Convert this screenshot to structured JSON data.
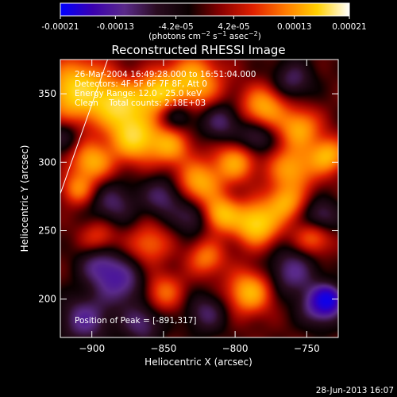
{
  "chart_data": {
    "type": "heatmap",
    "title": "Reconstructed RHESSI Image",
    "xlabel": "Heliocentric X (arcsec)",
    "ylabel": "Heliocentric Y (arcsec)",
    "xlim": [
      -922,
      -728
    ],
    "ylim": [
      172,
      375
    ],
    "x_ticks": [
      {
        "value": -900,
        "label": "−900"
      },
      {
        "value": -850,
        "label": "−850"
      },
      {
        "value": -800,
        "label": "−800"
      },
      {
        "value": -750,
        "label": "−750"
      }
    ],
    "y_ticks": [
      {
        "value": 200,
        "label": "200"
      },
      {
        "value": 250,
        "label": "250"
      },
      {
        "value": 300,
        "label": "300"
      },
      {
        "value": 350,
        "label": "350"
      }
    ],
    "info_lines": [
      "26-Mar-2004 16:49:28.000 to 16:51:04.000",
      "Detectors: 4F 5F 6F 7F 8F, Att 0",
      "Energy Range: 12.0 - 25.0 keV",
      "Clean    Total counts: 2.18E+03"
    ],
    "peak_label": "Position of Peak = [-891,317]",
    "peak": [
      -891,
      317
    ],
    "colorbar": {
      "range": [
        -0.00021,
        0.00021
      ],
      "ticks": [
        {
          "value": -0.00021,
          "label": "-0.00021"
        },
        {
          "value": -0.00013,
          "label": "-0.00013"
        },
        {
          "value": -4.2e-05,
          "label": "-4.2e-05"
        },
        {
          "value": 4.2e-05,
          "label": "4.2e-05"
        },
        {
          "value": 0.00013,
          "label": "0.00013"
        },
        {
          "value": 0.00021,
          "label": "0.00021"
        }
      ],
      "colors": [
        "#0000ff",
        "#3a00b0",
        "#5a2a8a",
        "#2a0c20",
        "#0a0000",
        "#8a0000",
        "#e02000",
        "#ff7a00",
        "#ffd000",
        "#ffffff"
      ]
    },
    "limb_line": [
      [
        -889,
        375
      ],
      [
        -922,
        277
      ]
    ],
    "blobs": [
      {
        "x": -910,
        "y": 352,
        "a": 1.0,
        "s": 16
      },
      {
        "x": -880,
        "y": 342,
        "a": 0.85,
        "s": 12
      },
      {
        "x": -855,
        "y": 350,
        "a": 0.8,
        "s": 10
      },
      {
        "x": -830,
        "y": 358,
        "a": 0.85,
        "s": 14
      },
      {
        "x": -870,
        "y": 318,
        "a": 0.95,
        "s": 12
      },
      {
        "x": -900,
        "y": 300,
        "a": 0.75,
        "s": 10
      },
      {
        "x": -845,
        "y": 312,
        "a": 0.65,
        "s": 10
      },
      {
        "x": -780,
        "y": 340,
        "a": 0.75,
        "s": 11
      },
      {
        "x": -755,
        "y": 325,
        "a": 0.7,
        "s": 10
      },
      {
        "x": -760,
        "y": 295,
        "a": 0.7,
        "s": 12
      },
      {
        "x": -735,
        "y": 305,
        "a": 0.75,
        "s": 9
      },
      {
        "x": -800,
        "y": 300,
        "a": 0.7,
        "s": 10
      },
      {
        "x": -825,
        "y": 285,
        "a": 0.75,
        "s": 11
      },
      {
        "x": -785,
        "y": 255,
        "a": 1.0,
        "s": 11
      },
      {
        "x": -810,
        "y": 262,
        "a": 0.8,
        "s": 9
      },
      {
        "x": -765,
        "y": 270,
        "a": 0.65,
        "s": 9
      },
      {
        "x": -745,
        "y": 245,
        "a": 0.55,
        "s": 9
      },
      {
        "x": -860,
        "y": 240,
        "a": 0.5,
        "s": 10
      },
      {
        "x": -820,
        "y": 230,
        "a": 0.55,
        "s": 9
      },
      {
        "x": -895,
        "y": 245,
        "a": 0.4,
        "s": 9
      },
      {
        "x": -790,
        "y": 205,
        "a": 0.8,
        "s": 11
      },
      {
        "x": -850,
        "y": 205,
        "a": 0.5,
        "s": 10
      },
      {
        "x": -910,
        "y": 280,
        "a": 0.55,
        "s": 8
      },
      {
        "x": -880,
        "y": 212,
        "a": -0.6,
        "s": 12
      },
      {
        "x": -895,
        "y": 225,
        "a": -0.5,
        "s": 10
      },
      {
        "x": -905,
        "y": 185,
        "a": -0.6,
        "s": 12
      },
      {
        "x": -865,
        "y": 182,
        "a": -0.5,
        "s": 10
      },
      {
        "x": -885,
        "y": 270,
        "a": -0.45,
        "s": 11
      },
      {
        "x": -850,
        "y": 275,
        "a": -0.5,
        "s": 10
      },
      {
        "x": -830,
        "y": 260,
        "a": -0.45,
        "s": 9
      },
      {
        "x": -810,
        "y": 330,
        "a": -0.5,
        "s": 10
      },
      {
        "x": -840,
        "y": 335,
        "a": -0.45,
        "s": 9
      },
      {
        "x": -785,
        "y": 318,
        "a": -0.5,
        "s": 9
      },
      {
        "x": -760,
        "y": 360,
        "a": -0.45,
        "s": 10
      },
      {
        "x": -740,
        "y": 260,
        "a": -0.5,
        "s": 9
      },
      {
        "x": -760,
        "y": 220,
        "a": -0.55,
        "s": 12
      },
      {
        "x": -740,
        "y": 195,
        "a": -0.75,
        "s": 10
      },
      {
        "x": -735,
        "y": 200,
        "a": -0.9,
        "s": 6
      },
      {
        "x": -820,
        "y": 190,
        "a": -0.45,
        "s": 10
      },
      {
        "x": -920,
        "y": 320,
        "a": -0.35,
        "s": 8
      }
    ]
  },
  "timestamp": "28-Jun-2013 16:07"
}
